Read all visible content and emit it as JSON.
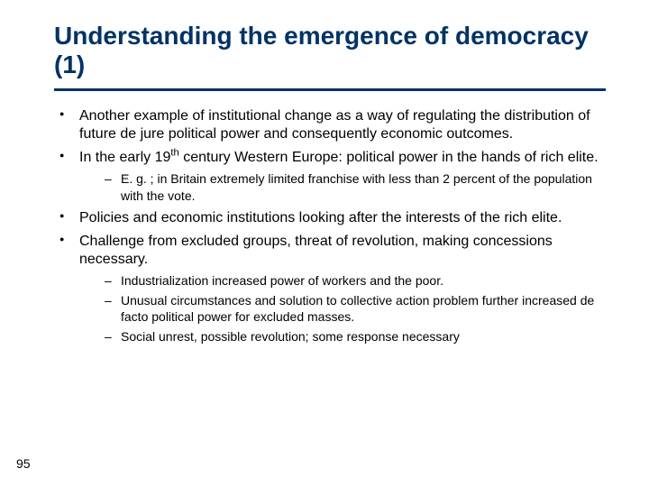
{
  "title": "Understanding the emergence of democracy (1)",
  "page_number": "95",
  "colors": {
    "heading": "#003366",
    "rule": "#003366",
    "text": "#000000",
    "background": "#ffffff"
  },
  "bullets": {
    "b1": "Another example of institutional change as a way of regulating the distribution of future de jure political power and consequently economic outcomes.",
    "b2_pre": "In the early 19",
    "b2_sup": "th",
    "b2_post": " century Western Europe: political power in the hands of rich elite.",
    "b2_sub1": "E. g. ; in Britain extremely limited franchise with less than 2 percent of the population with the vote.",
    "b3": "Policies and economic institutions looking after the interests of the rich elite.",
    "b4": "Challenge from excluded groups, threat of revolution, making concessions necessary.",
    "b4_sub1": "Industrialization increased power of workers and the poor.",
    "b4_sub2": "Unusual circumstances and solution to collective action problem further increased de facto political power for excluded masses.",
    "b4_sub3": "Social unrest, possible revolution; some response necessary"
  }
}
